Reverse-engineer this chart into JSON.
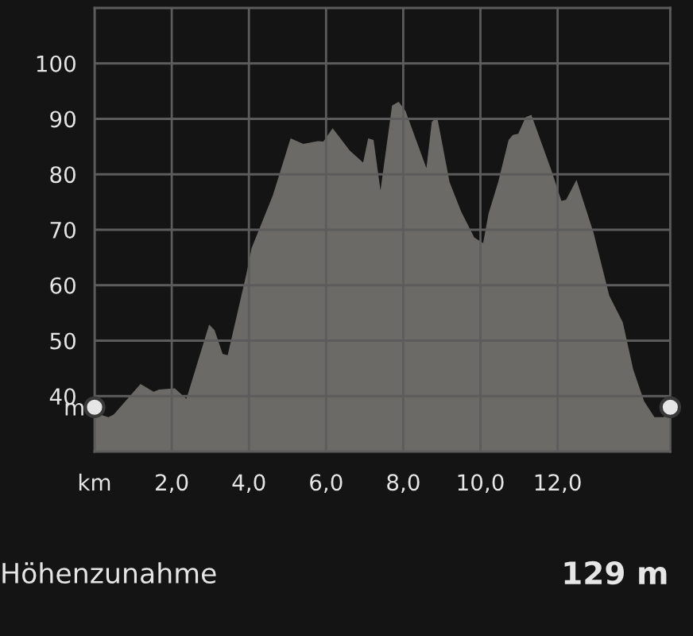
{
  "chart_data": {
    "type": "area",
    "ylabel": "m",
    "xlim": [
      0,
      14.92
    ],
    "ylim": [
      30,
      110
    ],
    "xticks": [
      {
        "value": 0,
        "label": "km"
      },
      {
        "value": 2,
        "label": "2,0"
      },
      {
        "value": 4,
        "label": "4,0"
      },
      {
        "value": 6,
        "label": "6,0"
      },
      {
        "value": 8,
        "label": "8,0"
      },
      {
        "value": 10,
        "label": "10,0"
      },
      {
        "value": 12,
        "label": "12,0"
      }
    ],
    "yticks": [
      40,
      50,
      60,
      70,
      80,
      90,
      100
    ],
    "grid": true,
    "series": [
      {
        "color": "#6b6a66",
        "x": [
          0,
          0.36,
          0.5,
          1.19,
          1.53,
          1.67,
          2.08,
          2.38,
          2.97,
          3.11,
          3.32,
          3.45,
          3.93,
          4.07,
          4.62,
          5.08,
          5.41,
          5.79,
          5.93,
          6.17,
          6.61,
          6.96,
          7.09,
          7.23,
          7.41,
          7.71,
          7.88,
          8.06,
          8.6,
          8.74,
          8.88,
          9.2,
          9.5,
          9.84,
          10.07,
          10.21,
          10.46,
          10.73,
          10.84,
          10.98,
          11.17,
          11.32,
          11.83,
          12.1,
          12.22,
          12.49,
          12.93,
          13.34,
          13.69,
          13.96,
          14.24,
          14.51,
          14.72,
          14.92
        ],
        "values": [
          37,
          36.2,
          36.7,
          42.2,
          40.8,
          41.2,
          41.4,
          39.5,
          52.9,
          51.9,
          47.6,
          47.4,
          61.9,
          66.7,
          76.2,
          86.5,
          85.5,
          86,
          85.9,
          88.3,
          84.3,
          82.1,
          86.5,
          86.2,
          77.1,
          92.4,
          93.1,
          91.4,
          81.1,
          89.5,
          90.3,
          78.6,
          73.3,
          68.6,
          67.6,
          72.9,
          78.6,
          86.2,
          87.1,
          87.3,
          90.3,
          90.7,
          80.9,
          75.2,
          75.4,
          79,
          69.5,
          58.1,
          53.3,
          44.8,
          39.1,
          36.2,
          36.2,
          36.5
        ]
      },
      {
        "type": "scatter",
        "color": "#e6e6e6",
        "marker": "circle",
        "x": [
          0,
          14.92
        ],
        "values": [
          38,
          38
        ]
      }
    ],
    "annotations": [
      "Höhenzunahme",
      "129 m"
    ]
  }
}
